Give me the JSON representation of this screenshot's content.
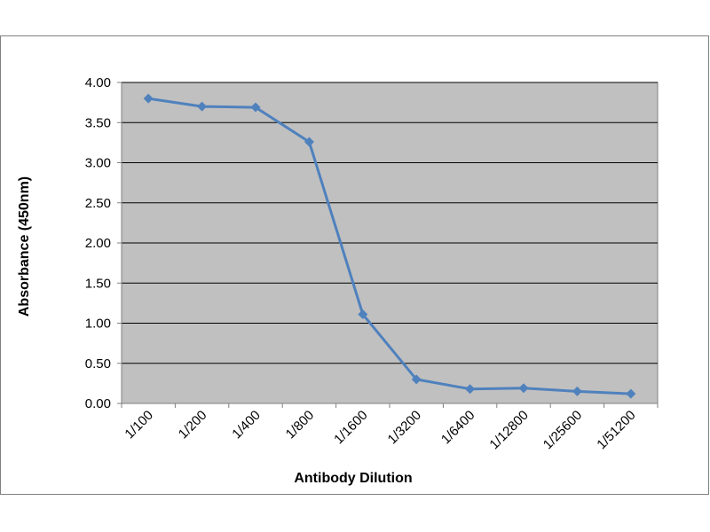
{
  "chart_data": {
    "type": "line",
    "title": "",
    "xlabel": "Antibody Dilution",
    "ylabel": "Absorbance (450nm)",
    "categories": [
      "1/100",
      "1/200",
      "1/400",
      "1/800",
      "1/1600",
      "1/3200",
      "1/6400",
      "1/12800",
      "1/25600",
      "1/51200"
    ],
    "series": [
      {
        "values": [
          3.8,
          3.7,
          3.69,
          3.26,
          1.11,
          0.3,
          0.18,
          0.19,
          0.15,
          0.12
        ]
      }
    ],
    "ylim": [
      0,
      4
    ],
    "yticks": [
      "0.00",
      "0.50",
      "1.00",
      "1.50",
      "2.00",
      "2.50",
      "3.00",
      "3.50",
      "4.00"
    ],
    "grid": true,
    "legend": "none",
    "colors": {
      "plot_background": "#c0c0c0",
      "line": "#4f81bd",
      "gridline": "#000000"
    }
  }
}
